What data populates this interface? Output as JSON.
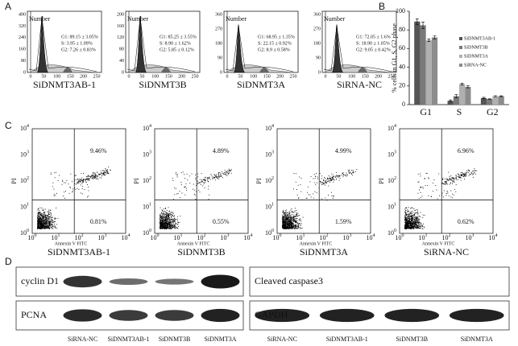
{
  "panel_a": {
    "label": "A",
    "ylabel": "Number",
    "xticks": [
      "0",
      "50",
      "100",
      "150",
      "200",
      "250"
    ],
    "plots": [
      {
        "title": "SiDNMT3AB-1",
        "yticks": [
          "0",
          "80",
          "160",
          "240",
          "320",
          "400"
        ],
        "stats": [
          "G1: 89.15 ± 3.05%",
          "S: 3.95 ± 1.09%",
          "G2: 7.26 ± 0.83%"
        ]
      },
      {
        "title": "SiDNMT3B",
        "yticks": [
          "0",
          "40",
          "80",
          "120",
          "160",
          "200"
        ],
        "stats": [
          "G1: 85.25 ± 3.55%",
          "S: 8.90 ± 1.62%",
          "G2: 5.85 ± 0.12%"
        ]
      },
      {
        "title": "SiDNMT3A",
        "yticks": [
          "0",
          "90",
          "180",
          "270",
          "360"
        ],
        "stats": [
          "G1: 68.95 ± 1.35%",
          "S: 22.15 ± 0.92%",
          "G2: 8.9 ± 0.58%"
        ]
      },
      {
        "title": "SiRNA-NC",
        "yticks": [
          "0",
          "90",
          "180",
          "270",
          "360"
        ],
        "stats": [
          "G1: 72.05 ± 1.6%",
          "S: 18.90 ± 1.05%",
          "G2: 9.05 ± 0.42%"
        ]
      }
    ]
  },
  "chart_data": {
    "type": "bar",
    "label": "B",
    "ylabel": "% cells in G1, S, G2 phase",
    "categories": [
      "G1",
      "S",
      "G2"
    ],
    "series": [
      {
        "name": "SiDNMT3AB-1",
        "color": "#555555",
        "values": [
          89,
          4,
          7
        ],
        "errors": [
          3,
          1,
          0.8
        ]
      },
      {
        "name": "SiDNMT3B",
        "color": "#7a7a7a",
        "values": [
          85,
          9,
          6
        ],
        "errors": [
          3.5,
          1.6,
          0.2
        ]
      },
      {
        "name": "SiDNMT3A",
        "color": "#b0b0b0",
        "values": [
          69,
          22,
          9
        ],
        "errors": [
          1.4,
          0.9,
          0.6
        ]
      },
      {
        "name": "SiRNA-NC",
        "color": "#8c8c8c",
        "values": [
          72,
          19,
          9
        ],
        "errors": [
          1.6,
          1.1,
          0.4
        ]
      }
    ],
    "ylim": [
      0,
      100
    ],
    "yticks": [
      0,
      20,
      40,
      60,
      80,
      100
    ],
    "legend": "right"
  },
  "panel_c": {
    "label": "C",
    "xlabel": "Annexin V FITC",
    "ylabel": "PI",
    "ticks": [
      {
        "base": "10",
        "exp": "0"
      },
      {
        "base": "10",
        "exp": "1"
      },
      {
        "base": "10",
        "exp": "2"
      },
      {
        "base": "10",
        "exp": "3"
      },
      {
        "base": "10",
        "exp": "4"
      }
    ],
    "plots": [
      {
        "title": "SiDNMT3AB-1",
        "upper_right": "9.46%",
        "lower_right": "0.81%"
      },
      {
        "title": "SiDNMT3B",
        "upper_right": "4.89%",
        "lower_right": "0.55%"
      },
      {
        "title": "SiDNMT3A",
        "upper_right": "4.99%",
        "lower_right": "1.59%"
      },
      {
        "title": "SiRNA-NC",
        "upper_right": "6.96%",
        "lower_right": "0.62%"
      }
    ]
  },
  "panel_d": {
    "label": "D",
    "left": {
      "rows": [
        "cyclin D1",
        "PCNA"
      ],
      "lanes": [
        "SiRNA-NC",
        "SiDNMT3AB-1",
        "SiDNMT3B",
        "SiDNMT3A"
      ]
    },
    "right": {
      "rows": [
        "Cleaved caspase3",
        "GAPDH"
      ],
      "lanes": [
        "SiRNA-NC",
        "SiDNMT3AB-1",
        "SiDNMT3B",
        "SiDNMT3A"
      ]
    }
  }
}
